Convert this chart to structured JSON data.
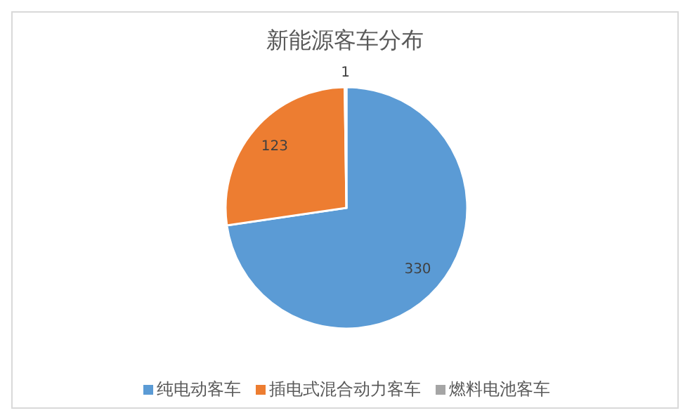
{
  "chart_data": {
    "type": "pie",
    "title": "新能源客车分布",
    "categories": [
      "纯电动客车",
      "插电式混合动力客车",
      "燃料电池客车"
    ],
    "values": [
      330,
      123,
      1
    ],
    "colors": [
      "#5b9bd5",
      "#ed7d31",
      "#a5a5a5"
    ],
    "data_labels": true,
    "legend": "bottom"
  }
}
